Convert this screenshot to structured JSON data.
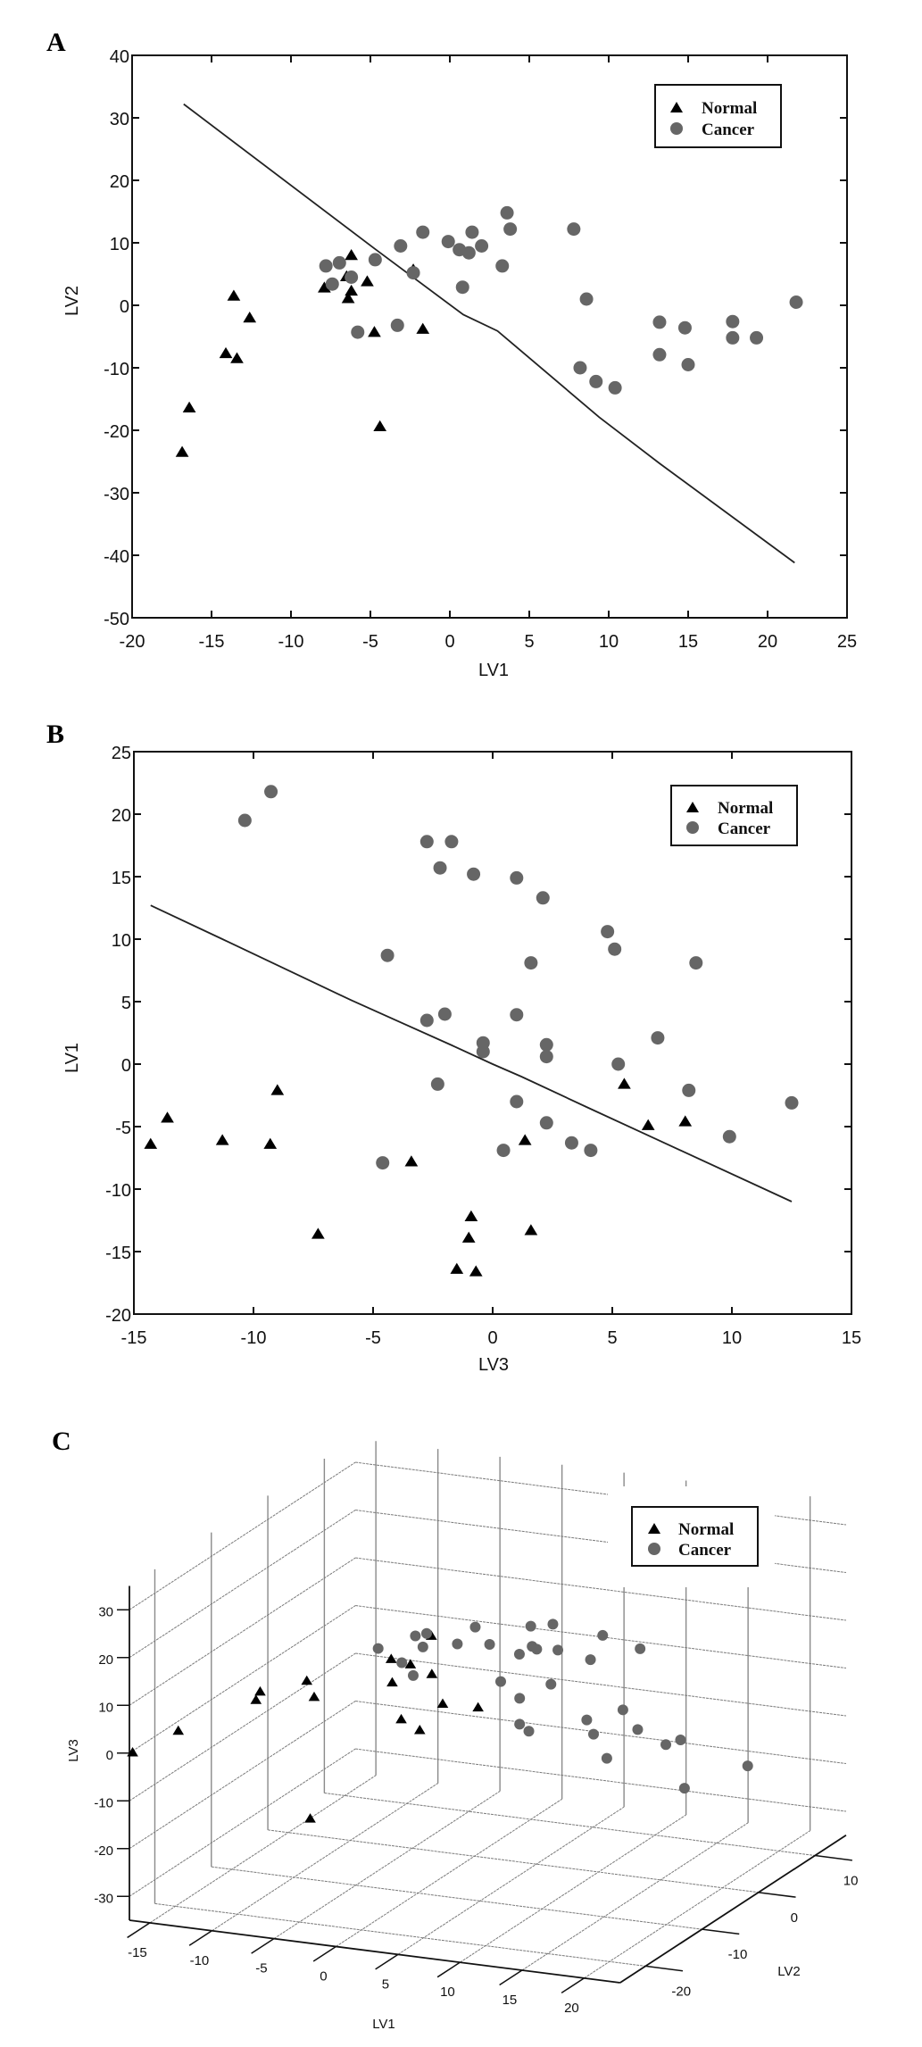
{
  "figure": {
    "panels": [
      "A",
      "B",
      "C"
    ]
  },
  "chart_data": [
    {
      "panel_label": "A",
      "type": "scatter",
      "title": "",
      "xlabel": "LV1",
      "ylabel": "LV2",
      "xlim": [
        -20,
        25
      ],
      "ylim": [
        -50,
        40
      ],
      "xticks": [
        -20,
        -15,
        -10,
        -5,
        0,
        5,
        10,
        15,
        20,
        25
      ],
      "yticks": [
        -50,
        -40,
        -30,
        -20,
        -10,
        0,
        10,
        20,
        30,
        40
      ],
      "grid": false,
      "legend": {
        "placement": "top-right",
        "entries": [
          "Normal",
          "Cancer"
        ]
      },
      "series": [
        {
          "name": "Normal",
          "marker": "triangle",
          "color": "#000000",
          "points": [
            [
              -16.85,
              -23.5
            ],
            [
              -16.4,
              -16.4
            ],
            [
              -14.1,
              -7.7
            ],
            [
              -13.6,
              1.5
            ],
            [
              -13.4,
              -8.5
            ],
            [
              -12.6,
              -2.0
            ],
            [
              -7.9,
              2.8
            ],
            [
              -6.5,
              4.6
            ],
            [
              -6.4,
              1.1
            ],
            [
              -6.2,
              8.0
            ],
            [
              -6.2,
              2.3
            ],
            [
              -5.2,
              3.8
            ],
            [
              -4.75,
              -4.3
            ],
            [
              -4.4,
              -19.4
            ],
            [
              -2.3,
              5.7
            ],
            [
              -1.7,
              -3.8
            ]
          ]
        },
        {
          "name": "Cancer",
          "marker": "circle",
          "color": "#666666",
          "points": [
            [
              -7.8,
              6.3
            ],
            [
              -7.4,
              3.4
            ],
            [
              -6.95,
              6.8
            ],
            [
              -6.2,
              4.5
            ],
            [
              -5.8,
              -4.3
            ],
            [
              -4.7,
              7.3
            ],
            [
              -3.3,
              -3.2
            ],
            [
              -3.1,
              9.5
            ],
            [
              -2.3,
              5.2
            ],
            [
              -1.7,
              11.7
            ],
            [
              -0.1,
              10.2
            ],
            [
              0.6,
              8.9
            ],
            [
              0.8,
              2.9
            ],
            [
              1.2,
              8.4
            ],
            [
              1.4,
              11.7
            ],
            [
              2.0,
              9.5
            ],
            [
              3.3,
              6.3
            ],
            [
              3.6,
              14.8
            ],
            [
              3.8,
              12.2
            ],
            [
              7.8,
              12.2
            ],
            [
              8.2,
              -10.0
            ],
            [
              8.6,
              1.0
            ],
            [
              9.2,
              -12.2
            ],
            [
              10.4,
              -13.2
            ],
            [
              13.2,
              -2.7
            ],
            [
              13.2,
              -7.9
            ],
            [
              14.8,
              -3.6
            ],
            [
              15.0,
              -9.5
            ],
            [
              17.8,
              -2.6
            ],
            [
              17.8,
              -5.2
            ],
            [
              19.3,
              -5.2
            ],
            [
              21.8,
              0.5
            ]
          ]
        }
      ],
      "boundary_line": [
        [
          -16.75,
          32.2
        ],
        [
          -4.75,
          9.1
        ],
        [
          0.85,
          -1.5
        ],
        [
          3.0,
          -4.1
        ],
        [
          9.4,
          -17.9
        ],
        [
          13.2,
          -25.3
        ],
        [
          21.7,
          -41.2
        ]
      ]
    },
    {
      "panel_label": "B",
      "type": "scatter",
      "title": "",
      "xlabel": "LV3",
      "ylabel": "LV1",
      "xlim": [
        -15,
        15
      ],
      "ylim": [
        -20,
        25
      ],
      "xticks": [
        -15,
        -10,
        -5,
        0,
        5,
        10,
        15
      ],
      "yticks": [
        -20,
        -15,
        -10,
        -5,
        0,
        5,
        10,
        15,
        20,
        25
      ],
      "grid": false,
      "legend": {
        "placement": "top-right",
        "entries": [
          "Normal",
          "Cancer"
        ]
      },
      "series": [
        {
          "name": "Normal",
          "marker": "triangle",
          "color": "#000000",
          "points": [
            [
              -14.3,
              -6.4
            ],
            [
              -13.6,
              -4.3
            ],
            [
              -11.3,
              -6.1
            ],
            [
              -9.3,
              -6.4
            ],
            [
              -9.0,
              -2.1
            ],
            [
              -7.3,
              -13.6
            ],
            [
              -3.4,
              -7.8
            ],
            [
              -0.9,
              -12.2
            ],
            [
              -1.0,
              -13.9
            ],
            [
              -1.5,
              -16.4
            ],
            [
              -0.7,
              -16.6
            ],
            [
              5.5,
              -1.6
            ],
            [
              6.5,
              -4.9
            ],
            [
              8.05,
              -4.6
            ],
            [
              1.35,
              -6.1
            ],
            [
              1.6,
              -13.3
            ]
          ]
        },
        {
          "name": "Cancer",
          "marker": "circle",
          "color": "#666666",
          "points": [
            [
              -9.27,
              21.8
            ],
            [
              -10.36,
              19.5
            ],
            [
              -2.75,
              17.8
            ],
            [
              -1.72,
              17.8
            ],
            [
              -2.2,
              15.7
            ],
            [
              -0.8,
              15.2
            ],
            [
              -4.4,
              8.7
            ],
            [
              -2.75,
              3.5
            ],
            [
              -2.0,
              4.0
            ],
            [
              -0.4,
              1.7
            ],
            [
              -0.4,
              1.0
            ],
            [
              -2.3,
              -1.6
            ],
            [
              -4.6,
              -7.9
            ],
            [
              1.0,
              14.9
            ],
            [
              2.1,
              13.3
            ],
            [
              4.8,
              10.6
            ],
            [
              5.1,
              9.2
            ],
            [
              1.6,
              8.1
            ],
            [
              8.5,
              8.1
            ],
            [
              1.0,
              3.95
            ],
            [
              6.9,
              2.1
            ],
            [
              2.25,
              1.55
            ],
            [
              2.25,
              0.6
            ],
            [
              5.25,
              0.0
            ],
            [
              8.2,
              -2.1
            ],
            [
              1.0,
              -3.0
            ],
            [
              12.5,
              -3.1
            ],
            [
              2.25,
              -4.7
            ],
            [
              9.9,
              -5.8
            ],
            [
              0.45,
              -6.9
            ],
            [
              3.3,
              -6.3
            ],
            [
              4.1,
              -6.9
            ]
          ]
        }
      ],
      "boundary_line": [
        [
          -14.3,
          12.7
        ],
        [
          -11.3,
          10.0
        ],
        [
          -5.9,
          5.1
        ],
        [
          -1.7,
          1.5
        ],
        [
          0.0,
          0.0
        ],
        [
          1.2,
          -1.0
        ],
        [
          4.0,
          -3.5
        ],
        [
          12.5,
          -11.0
        ]
      ]
    },
    {
      "panel_label": "C",
      "type": "scatter3d",
      "title": "",
      "xlabel": "LV1",
      "ylabel": "LV2",
      "zlabel": "LV3",
      "xlim": [
        -16.65,
        22.9
      ],
      "ylim": [
        -24.5,
        15.5
      ],
      "zlim": [
        -35,
        35
      ],
      "xticks": [
        -15,
        -10,
        -5,
        0,
        5,
        10,
        15,
        20
      ],
      "yticks": [
        -20,
        -10,
        0,
        10
      ],
      "zticks": [
        -30,
        -20,
        -10,
        0,
        10,
        20,
        30
      ],
      "grid": true,
      "legend": {
        "placement": "top-right",
        "entries": [
          "Normal",
          "Cancer"
        ]
      },
      "series": [
        {
          "name": "Normal",
          "marker": "triangle",
          "color": "#000000",
          "points": [
            [
              -16.85,
              -23.5,
              -0.7
            ],
            [
              -16.4,
              -16.4,
              -1.5
            ],
            [
              -14.1,
              -7.7,
              -1.0
            ],
            [
              -13.6,
              1.5,
              -7.3
            ],
            [
              -13.4,
              -8.5,
              1.6
            ],
            [
              -12.6,
              -2.0,
              -0.9
            ],
            [
              -7.9,
              2.8,
              -3.4
            ],
            [
              -6.5,
              4.6,
              -14.3
            ],
            [
              -6.4,
              1.1,
              -9.3
            ],
            [
              -6.2,
              8.0,
              -11.3
            ],
            [
              -6.2,
              2.3,
              1.35
            ],
            [
              -5.2,
              3.8,
              6.5
            ],
            [
              -4.75,
              -4.3,
              8.05
            ],
            [
              -4.4,
              -19.4,
              -13.6
            ],
            [
              -2.3,
              5.7,
              -9.0
            ],
            [
              -1.7,
              -3.8,
              5.5
            ]
          ]
        },
        {
          "name": "Cancer",
          "marker": "circle",
          "color": "#666666",
          "points": [
            [
              -7.8,
              6.3,
              -4.6
            ],
            [
              -7.4,
              3.4,
              0.45
            ],
            [
              -6.95,
              6.8,
              4.1
            ],
            [
              -6.2,
              4.5,
              3.3
            ],
            [
              -5.8,
              -4.3,
              9.9
            ],
            [
              -4.7,
              7.3,
              2.25
            ],
            [
              -3.3,
              -3.2,
              12.5
            ],
            [
              -3.1,
              9.5,
              1.0
            ],
            [
              -2.3,
              5.2,
              8.2
            ],
            [
              -1.7,
              11.7,
              -2.3
            ],
            [
              -0.1,
              10.2,
              5.25
            ],
            [
              0.6,
              8.9,
              2.25
            ],
            [
              0.8,
              2.9,
              -0.4
            ],
            [
              1.2,
              8.4,
              2.25
            ],
            [
              1.4,
              11.7,
              -0.4
            ],
            [
              2.0,
              9.5,
              6.9
            ],
            [
              3.3,
              6.3,
              -2.75
            ],
            [
              3.6,
              14.8,
              1.0
            ],
            [
              3.8,
              12.2,
              -2.0
            ],
            [
              7.8,
              12.2,
              1.6
            ],
            [
              8.2,
              -10.0,
              8.5
            ],
            [
              8.6,
              1.0,
              -4.4
            ],
            [
              9.2,
              -12.2,
              5.1
            ],
            [
              10.4,
              -13.2,
              4.8
            ],
            [
              13.2,
              -2.7,
              2.1
            ],
            [
              13.2,
              -7.9,
              1.0
            ],
            [
              14.8,
              -3.6,
              -0.8
            ],
            [
              15.0,
              -9.5,
              -2.2
            ],
            [
              17.8,
              -2.6,
              -2.75
            ],
            [
              17.8,
              -5.2,
              -1.72
            ],
            [
              19.3,
              -5.2,
              -10.36
            ],
            [
              21.8,
              0.5,
              -9.27
            ]
          ]
        }
      ]
    }
  ]
}
